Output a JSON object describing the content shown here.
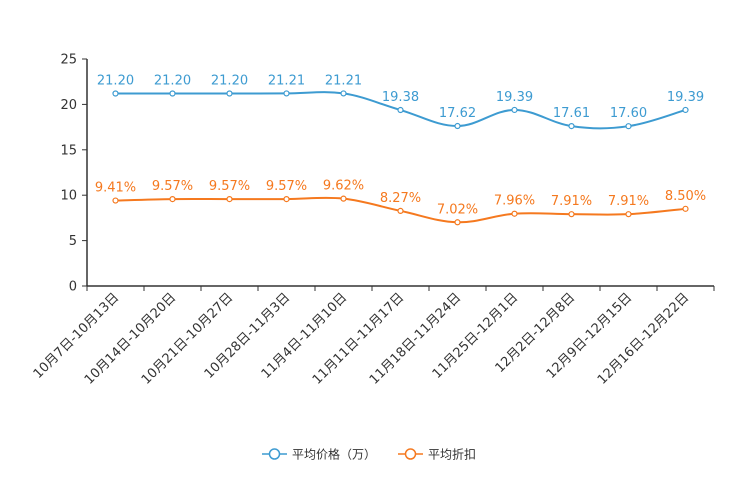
{
  "chart_data": {
    "type": "line",
    "title": "",
    "xlabel": "",
    "ylabel": "",
    "ylim": [
      0,
      25
    ],
    "yticks": [
      0,
      5,
      10,
      15,
      20,
      25
    ],
    "grid": false,
    "legend_position": "bottom-center",
    "categories": [
      "10月7日-10月13日",
      "10月14日-10月20日",
      "10月21日-10月27日",
      "10月28日-11月3日",
      "11月4日-11月10日",
      "11月11日-11月17日",
      "11月18日-11月24日",
      "11月25日-12月1日",
      "12月2日-12月8日",
      "12月9日-12月15日",
      "12月16日-12月22日"
    ],
    "series": [
      {
        "name": "平均价格（万）",
        "color": "#3d9bd1",
        "values": [
          21.2,
          21.2,
          21.2,
          21.21,
          21.21,
          19.38,
          17.62,
          19.39,
          17.61,
          17.6,
          19.39
        ],
        "labels": [
          "21.20",
          "21.20",
          "21.20",
          "21.21",
          "21.21",
          "19.38",
          "17.62",
          "19.39",
          "17.61",
          "17.60",
          "19.39"
        ]
      },
      {
        "name": "平均折扣",
        "color": "#f5791f",
        "values": [
          9.41,
          9.57,
          9.57,
          9.57,
          9.62,
          8.27,
          7.02,
          7.96,
          7.91,
          7.91,
          8.5
        ],
        "labels": [
          "9.41%",
          "9.57%",
          "9.57%",
          "9.57%",
          "9.62%",
          "8.27%",
          "7.02%",
          "7.96%",
          "7.91%",
          "7.91%",
          "8.50%"
        ]
      }
    ]
  }
}
